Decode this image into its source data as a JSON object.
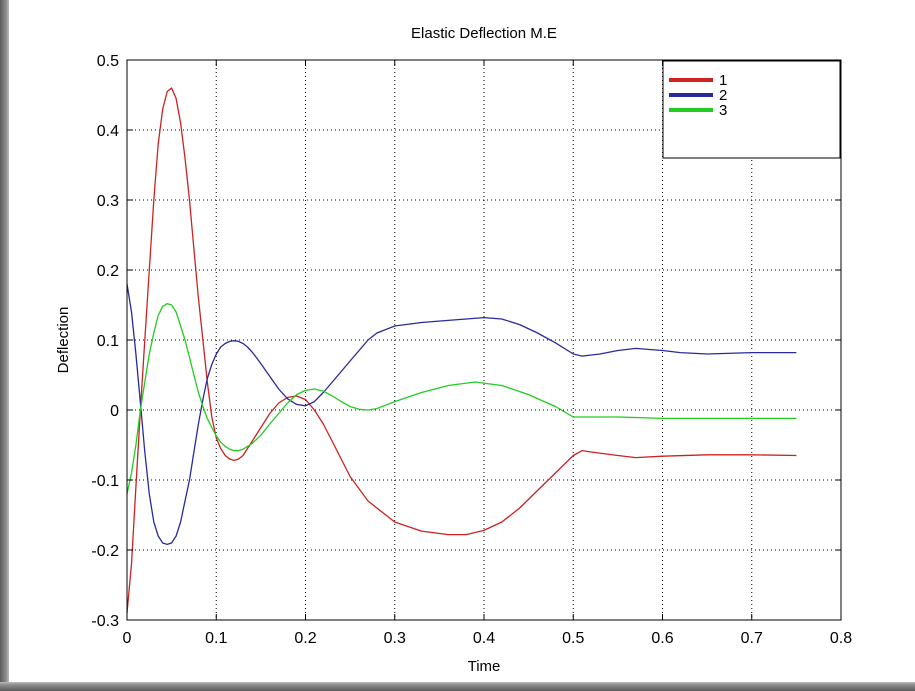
{
  "chart_data": {
    "type": "line",
    "title": "Elastic Deflection M.E",
    "xlabel": "Time",
    "ylabel": "Deflection",
    "xlim": [
      0,
      0.8
    ],
    "ylim": [
      -0.3,
      0.5
    ],
    "xticks": [
      0,
      0.1,
      0.2,
      0.3,
      0.4,
      0.5,
      0.6,
      0.7,
      0.8
    ],
    "yticks": [
      -0.3,
      -0.2,
      -0.1,
      0,
      0.1,
      0.2,
      0.3,
      0.4,
      0.5
    ],
    "xtick_labels": [
      "0",
      "0.1",
      "0.2",
      "0.3",
      "0.4",
      "0.5",
      "0.6",
      "0.7",
      "0.8"
    ],
    "ytick_labels": [
      "-0.3",
      "-0.2",
      "-0.1",
      "0",
      "0.1",
      "0.2",
      "0.3",
      "0.4",
      "0.5"
    ],
    "grid": true,
    "legend_position": "top-right",
    "series": [
      {
        "name": "1",
        "color": "#cc2222",
        "x": [
          0,
          0.005,
          0.01,
          0.015,
          0.02,
          0.025,
          0.03,
          0.035,
          0.04,
          0.045,
          0.05,
          0.055,
          0.06,
          0.065,
          0.07,
          0.075,
          0.08,
          0.085,
          0.09,
          0.095,
          0.1,
          0.105,
          0.11,
          0.115,
          0.12,
          0.125,
          0.13,
          0.135,
          0.14,
          0.15,
          0.16,
          0.17,
          0.18,
          0.19,
          0.2,
          0.21,
          0.22,
          0.23,
          0.24,
          0.25,
          0.27,
          0.3,
          0.33,
          0.36,
          0.38,
          0.4,
          0.42,
          0.44,
          0.46,
          0.48,
          0.5,
          0.51,
          0.52,
          0.55,
          0.57,
          0.6,
          0.65,
          0.7,
          0.75
        ],
        "y": [
          -0.29,
          -0.22,
          -0.11,
          0.0,
          0.1,
          0.2,
          0.3,
          0.38,
          0.43,
          0.455,
          0.46,
          0.445,
          0.41,
          0.36,
          0.3,
          0.23,
          0.16,
          0.1,
          0.04,
          -0.01,
          -0.04,
          -0.055,
          -0.065,
          -0.07,
          -0.072,
          -0.07,
          -0.065,
          -0.055,
          -0.045,
          -0.025,
          -0.005,
          0.01,
          0.018,
          0.02,
          0.015,
          0.0,
          -0.02,
          -0.045,
          -0.07,
          -0.095,
          -0.13,
          -0.16,
          -0.173,
          -0.178,
          -0.178,
          -0.172,
          -0.16,
          -0.14,
          -0.115,
          -0.09,
          -0.065,
          -0.058,
          -0.06,
          -0.065,
          -0.068,
          -0.066,
          -0.064,
          -0.064,
          -0.065
        ]
      },
      {
        "name": "2",
        "color": "#2a2a9a",
        "x": [
          0,
          0.005,
          0.01,
          0.015,
          0.02,
          0.025,
          0.03,
          0.035,
          0.04,
          0.045,
          0.05,
          0.055,
          0.06,
          0.065,
          0.07,
          0.075,
          0.08,
          0.085,
          0.09,
          0.095,
          0.1,
          0.105,
          0.11,
          0.115,
          0.12,
          0.125,
          0.13,
          0.135,
          0.14,
          0.145,
          0.15,
          0.16,
          0.17,
          0.18,
          0.19,
          0.2,
          0.21,
          0.22,
          0.23,
          0.24,
          0.25,
          0.26,
          0.27,
          0.28,
          0.3,
          0.33,
          0.36,
          0.38,
          0.4,
          0.42,
          0.44,
          0.46,
          0.48,
          0.5,
          0.51,
          0.53,
          0.55,
          0.57,
          0.58,
          0.6,
          0.62,
          0.65,
          0.7,
          0.75
        ],
        "y": [
          0.18,
          0.14,
          0.08,
          0.01,
          -0.06,
          -0.12,
          -0.16,
          -0.18,
          -0.19,
          -0.192,
          -0.19,
          -0.18,
          -0.16,
          -0.13,
          -0.1,
          -0.06,
          -0.02,
          0.015,
          0.045,
          0.065,
          0.08,
          0.09,
          0.095,
          0.098,
          0.099,
          0.098,
          0.095,
          0.09,
          0.083,
          0.075,
          0.066,
          0.048,
          0.03,
          0.016,
          0.008,
          0.006,
          0.012,
          0.025,
          0.04,
          0.055,
          0.07,
          0.085,
          0.1,
          0.11,
          0.12,
          0.125,
          0.128,
          0.13,
          0.132,
          0.13,
          0.122,
          0.11,
          0.096,
          0.08,
          0.077,
          0.08,
          0.085,
          0.088,
          0.087,
          0.085,
          0.082,
          0.08,
          0.082,
          0.082
        ]
      },
      {
        "name": "3",
        "color": "#22cc22",
        "x": [
          0,
          0.005,
          0.01,
          0.015,
          0.02,
          0.025,
          0.03,
          0.035,
          0.04,
          0.045,
          0.05,
          0.055,
          0.06,
          0.065,
          0.07,
          0.075,
          0.08,
          0.085,
          0.09,
          0.095,
          0.1,
          0.105,
          0.11,
          0.115,
          0.12,
          0.125,
          0.13,
          0.14,
          0.15,
          0.16,
          0.17,
          0.18,
          0.19,
          0.2,
          0.21,
          0.22,
          0.23,
          0.24,
          0.25,
          0.26,
          0.27,
          0.28,
          0.3,
          0.33,
          0.36,
          0.39,
          0.42,
          0.45,
          0.48,
          0.5,
          0.51,
          0.55,
          0.6,
          0.65,
          0.7,
          0.75
        ],
        "y": [
          -0.12,
          -0.09,
          -0.05,
          0.0,
          0.04,
          0.08,
          0.11,
          0.135,
          0.148,
          0.152,
          0.15,
          0.14,
          0.12,
          0.1,
          0.075,
          0.05,
          0.025,
          0.005,
          -0.012,
          -0.025,
          -0.037,
          -0.046,
          -0.052,
          -0.056,
          -0.058,
          -0.058,
          -0.056,
          -0.048,
          -0.036,
          -0.02,
          -0.005,
          0.01,
          0.022,
          0.028,
          0.03,
          0.027,
          0.02,
          0.012,
          0.005,
          0.001,
          0.0,
          0.002,
          0.012,
          0.025,
          0.035,
          0.04,
          0.035,
          0.022,
          0.005,
          -0.01,
          -0.01,
          -0.01,
          -0.012,
          -0.012,
          -0.012,
          -0.012
        ]
      }
    ]
  }
}
